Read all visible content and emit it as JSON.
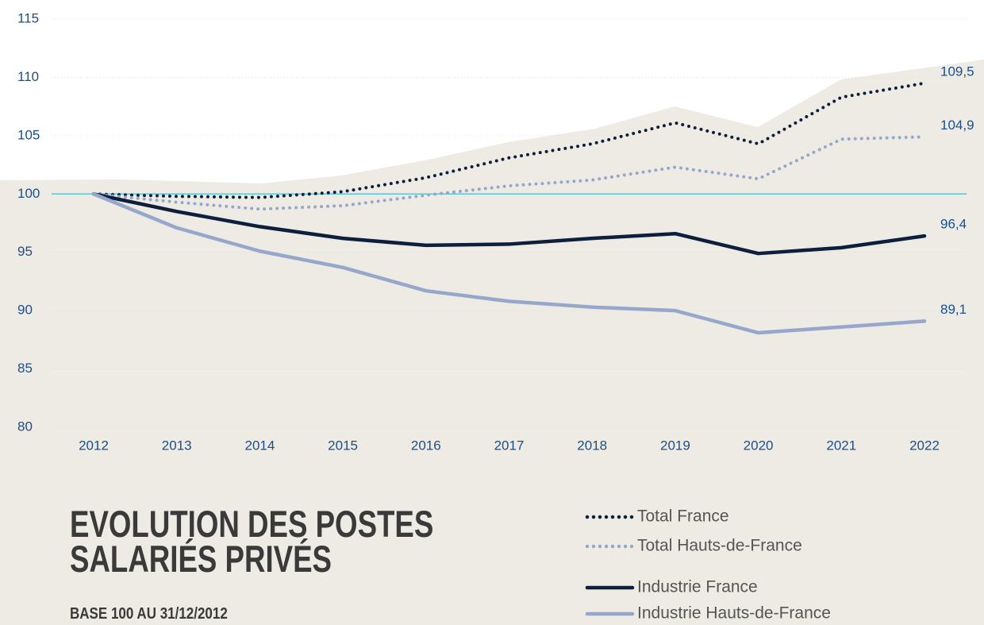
{
  "chart_data": {
    "type": "line",
    "title": "EVOLUTION DES POSTES SALARIÉS PRIVÉS",
    "subtitle": "BASE 100 AU 31/12/2012",
    "x": [
      2012,
      2013,
      2014,
      2015,
      2016,
      2017,
      2018,
      2019,
      2020,
      2021,
      2022
    ],
    "xlim": [
      2012,
      2022
    ],
    "ylim": [
      80,
      115
    ],
    "yticks": [
      80,
      85,
      90,
      95,
      100,
      105,
      110,
      115
    ],
    "grid": true,
    "series": [
      {
        "name": "Total France",
        "color": "#0d1f3c",
        "style": "dotted",
        "values": [
          100,
          99.8,
          99.7,
          100.2,
          101.4,
          103.1,
          104.3,
          106.1,
          104.3,
          108.3,
          109.5
        ],
        "value_labels": [
          null,
          null,
          null,
          null,
          null,
          null,
          null,
          null,
          null,
          null,
          "109,5"
        ]
      },
      {
        "name": "Total Hauts-de-France",
        "color": "#97a7cb",
        "style": "dotted",
        "values": [
          100,
          99.3,
          98.7,
          99.0,
          99.9,
          100.7,
          101.2,
          102.3,
          101.3,
          104.7,
          104.9
        ],
        "value_labels": [
          null,
          null,
          null,
          null,
          null,
          null,
          null,
          null,
          null,
          null,
          "104,9"
        ]
      },
      {
        "name": "Industrie France",
        "color": "#0d1f3c",
        "style": "solid",
        "values": [
          100,
          98.5,
          97.2,
          96.2,
          95.6,
          95.7,
          96.2,
          96.6,
          94.9,
          95.4,
          96.4
        ],
        "value_labels": [
          null,
          null,
          null,
          null,
          null,
          null,
          null,
          null,
          null,
          null,
          "96,4"
        ]
      },
      {
        "name": "Industrie Hauts-de-France",
        "color": "#97a7cb",
        "style": "solid",
        "values": [
          100,
          97.1,
          95.1,
          93.7,
          91.7,
          90.8,
          90.3,
          90.0,
          88.1,
          88.6,
          89.1
        ],
        "value_labels": [
          null,
          null,
          null,
          null,
          null,
          null,
          null,
          null,
          null,
          null,
          "89,1"
        ]
      }
    ]
  }
}
